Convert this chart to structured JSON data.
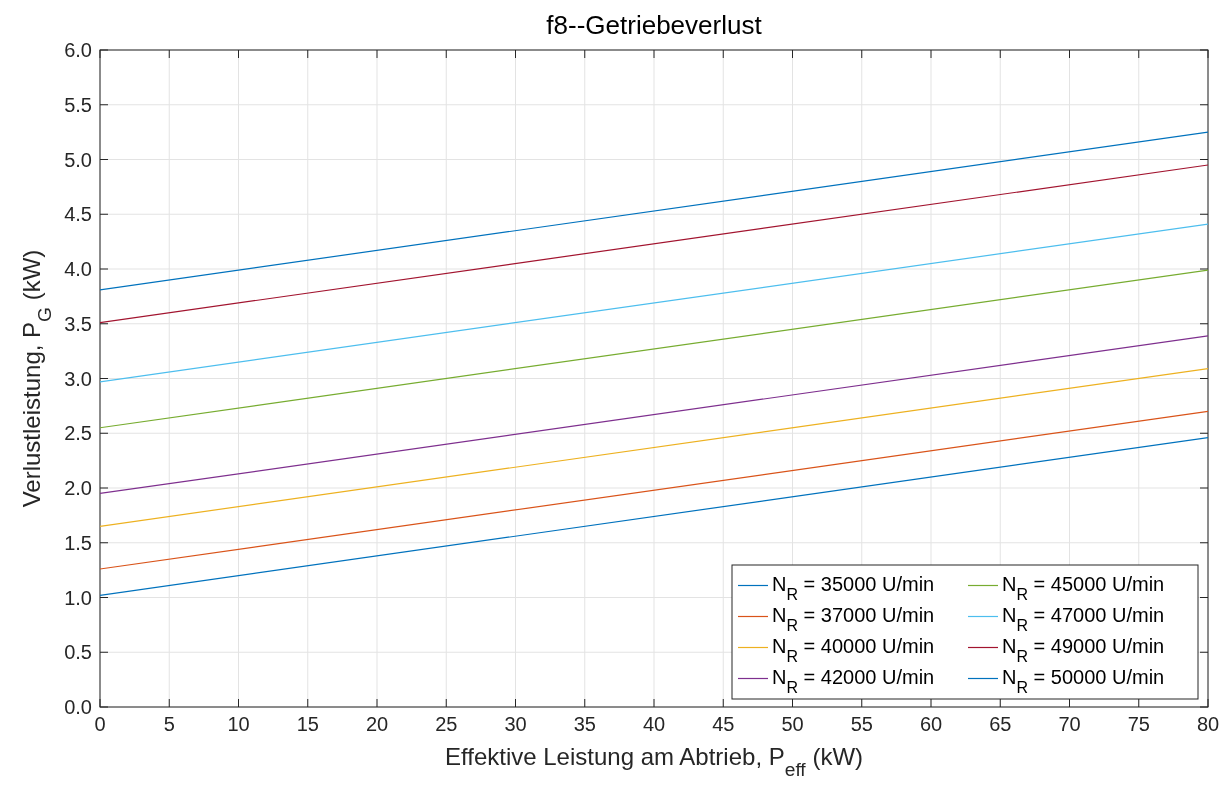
{
  "chart_data": {
    "type": "line",
    "title": "f8--Getriebeverlust",
    "xlabel": "Effektive Leistung am Abtrieb, P$_{eff}$ (kW)",
    "ylabel": "Verlustleistung, P$_{G}$ (kW)",
    "x": [
      0,
      80
    ],
    "series": [
      {
        "name": "N$_{R}$ = 35000 U/min",
        "color": "#0072bd",
        "values": [
          1.02,
          2.46
        ]
      },
      {
        "name": "N$_{R}$ = 37000 U/min",
        "color": "#d95319",
        "values": [
          1.26,
          2.7
        ]
      },
      {
        "name": "N$_{R}$ = 40000 U/min",
        "color": "#edb120",
        "values": [
          1.65,
          3.09
        ]
      },
      {
        "name": "N$_{R}$ = 42000 U/min",
        "color": "#7e2f8e",
        "values": [
          1.95,
          3.39
        ]
      },
      {
        "name": "N$_{R}$ = 45000 U/min",
        "color": "#77ac30",
        "values": [
          2.55,
          3.99
        ]
      },
      {
        "name": "N$_{R}$ = 47000 U/min",
        "color": "#4dbeee",
        "values": [
          2.97,
          4.41
        ]
      },
      {
        "name": "N$_{R}$ = 49000 U/min",
        "color": "#a2142f",
        "values": [
          3.51,
          4.95
        ]
      },
      {
        "name": "N$_{R}$ = 50000 U/min",
        "color": "#0072bd",
        "values": [
          3.81,
          5.25
        ]
      }
    ],
    "xlim": [
      0,
      80
    ],
    "xticks": [
      0,
      5,
      10,
      15,
      20,
      25,
      30,
      35,
      40,
      45,
      50,
      55,
      60,
      65,
      70,
      75,
      80
    ],
    "ylim": [
      0,
      6
    ],
    "yticks": [
      {
        "value": 0,
        "label": "0.0"
      },
      {
        "value": 0.5,
        "label": "0.5"
      },
      {
        "value": 1,
        "label": "1.0"
      },
      {
        "value": 1.5,
        "label": "1.5"
      },
      {
        "value": 2,
        "label": "2.0"
      },
      {
        "value": 2.5,
        "label": "2.5"
      },
      {
        "value": 3,
        "label": "3.0"
      },
      {
        "value": 3.5,
        "label": "3.5"
      },
      {
        "value": 4,
        "label": "4.0"
      },
      {
        "value": 4.5,
        "label": "4.5"
      },
      {
        "value": 5,
        "label": "5.0"
      },
      {
        "value": 5.5,
        "label": "5.5"
      },
      {
        "value": 6,
        "label": "6.0"
      }
    ],
    "grid": true,
    "legend": "bottom right",
    "line_style": "solid",
    "marker": "none"
  }
}
